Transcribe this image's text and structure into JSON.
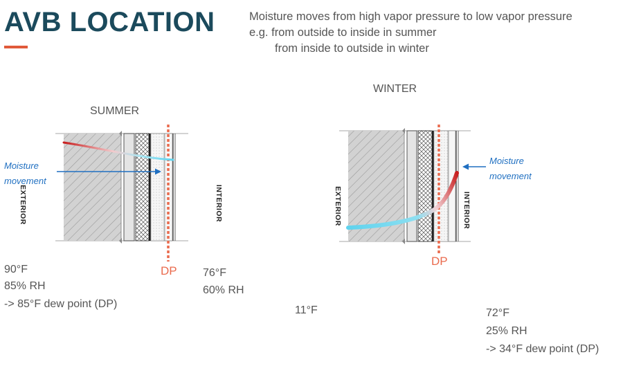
{
  "header": {
    "title": "AVB LOCATION"
  },
  "intro": {
    "line1": "Moisture moves from high vapor pressure to low vapor pressure",
    "line2": "e.g. from outside to inside in summer",
    "line3": "from inside to outside in winter"
  },
  "summer": {
    "label": "SUMMER",
    "exterior_label": "EXTERIOR",
    "interior_label": "INTERIOR",
    "moisture_label_1": "Moisture",
    "moisture_label_2": "movement",
    "dp_label": "DP",
    "outside": {
      "temp": "90°F",
      "rh": "85% RH",
      "dew": "-> 85°F dew point (DP)"
    },
    "inside": {
      "temp": "76°F",
      "rh": "60% RH"
    }
  },
  "winter": {
    "label": "WINTER",
    "exterior_label": "EXTERIOR",
    "interior_label": "INTERIOR",
    "moisture_label_1": "Moisture",
    "moisture_label_2": "movement",
    "dp_label": "DP",
    "outside": {
      "temp": "11°F"
    },
    "inside": {
      "temp": "72°F",
      "rh": "25% RH",
      "dew": "-> 34°F dew point (DP)"
    }
  },
  "colors": {
    "title": "#1b4a5c",
    "accent": "#e05a3a",
    "dew_point_line": "#ea6b4e",
    "moisture_arrow": "#1f6fc1",
    "warm": "#c81e1e",
    "cold": "#5fd3ee"
  }
}
